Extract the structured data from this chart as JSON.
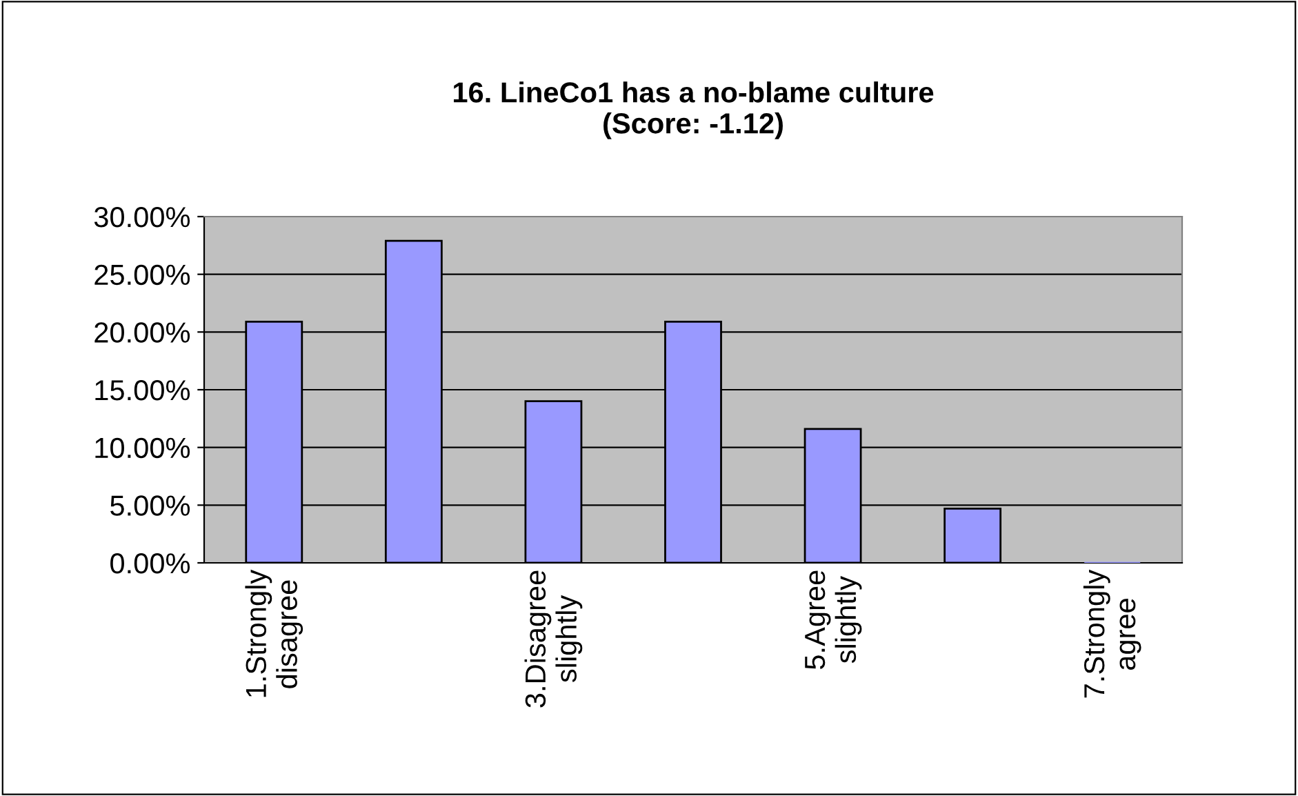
{
  "chart_data": {
    "type": "bar",
    "title": "16. LineCo1 has a no-blame culture\n(Score: -1.12)",
    "categories": [
      "1.Strongly\ndisagree",
      null,
      "3.Disagree\nslightly",
      null,
      "5.Agree\nslightly",
      null,
      "7.Strongly\nagree"
    ],
    "values": [
      20.9,
      27.9,
      14.0,
      20.9,
      11.6,
      4.7,
      0
    ],
    "color": "#9999ff",
    "ylim": [
      0,
      30
    ],
    "yticks": [
      {
        "value": 0,
        "label": "0.00%"
      },
      {
        "value": 5,
        "label": "5.00%"
      },
      {
        "value": 10,
        "label": "10.00%"
      },
      {
        "value": 15,
        "label": "15.00%"
      },
      {
        "value": 20,
        "label": "20.00%"
      },
      {
        "value": 25,
        "label": "25.00%"
      },
      {
        "value": 30,
        "label": "30.00%"
      }
    ],
    "grid": "y",
    "legend": false
  }
}
